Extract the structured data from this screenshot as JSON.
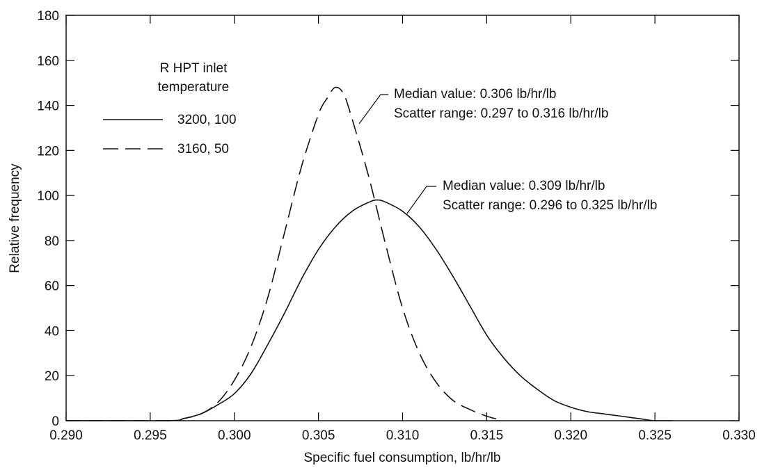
{
  "chart_data": {
    "type": "line",
    "title": "",
    "xlabel": "Specific fuel consumption, lb/hr/lb",
    "ylabel": "Relative frequency",
    "xlim": [
      0.29,
      0.33
    ],
    "ylim": [
      0,
      180
    ],
    "x_ticks": [
      "0.290",
      "0.295",
      "0.300",
      "0.305",
      "0.310",
      "0.315",
      "0.320",
      "0.325",
      "0.330"
    ],
    "y_ticks": [
      "0",
      "20",
      "40",
      "60",
      "80",
      "100",
      "120",
      "140",
      "160",
      "180"
    ],
    "grid": false,
    "legend": {
      "title_line1": "R HPT inlet",
      "title_line2": "temperature",
      "placement": "top-left",
      "entries": [
        "3200, 100",
        "3160, 50"
      ]
    },
    "series": [
      {
        "name": "3200, 100",
        "style": "solid",
        "x": [
          0.29,
          0.296,
          0.297,
          0.298,
          0.299,
          0.3,
          0.301,
          0.302,
          0.303,
          0.304,
          0.305,
          0.306,
          0.307,
          0.308,
          0.3085,
          0.309,
          0.31,
          0.311,
          0.312,
          0.313,
          0.314,
          0.315,
          0.316,
          0.317,
          0.318,
          0.319,
          0.32,
          0.321,
          0.322,
          0.323,
          0.324,
          0.325,
          0.326
        ],
        "y": [
          0,
          0,
          1,
          3,
          7,
          12,
          21,
          34,
          48,
          63,
          76,
          86,
          93,
          97,
          98,
          97,
          93,
          86,
          76,
          64,
          51,
          38,
          28,
          20,
          14,
          9,
          6,
          4,
          3,
          2,
          1,
          0,
          0
        ]
      },
      {
        "name": "3160, 50",
        "style": "dashed",
        "x": [
          0.29,
          0.296,
          0.297,
          0.298,
          0.299,
          0.3,
          0.301,
          0.302,
          0.303,
          0.304,
          0.305,
          0.3055,
          0.306,
          0.3065,
          0.307,
          0.308,
          0.309,
          0.31,
          0.311,
          0.312,
          0.313,
          0.314,
          0.315,
          0.316
        ],
        "y": [
          0,
          0,
          1,
          3,
          8,
          18,
          33,
          55,
          84,
          113,
          136,
          143,
          148,
          145,
          134,
          108,
          78,
          50,
          30,
          17,
          9,
          5,
          2,
          0
        ]
      }
    ],
    "annotations": [
      {
        "line1": "Median value: 0.306 lb/hr/lb",
        "line2": "Scatter range: 0.297 to 0.316 lb/hr/lb",
        "series": "3160, 50"
      },
      {
        "line1": "Median value: 0.309 lb/hr/lb",
        "line2": "Scatter range: 0.296 to 0.325 lb/hr/lb",
        "series": "3200, 100"
      }
    ]
  }
}
